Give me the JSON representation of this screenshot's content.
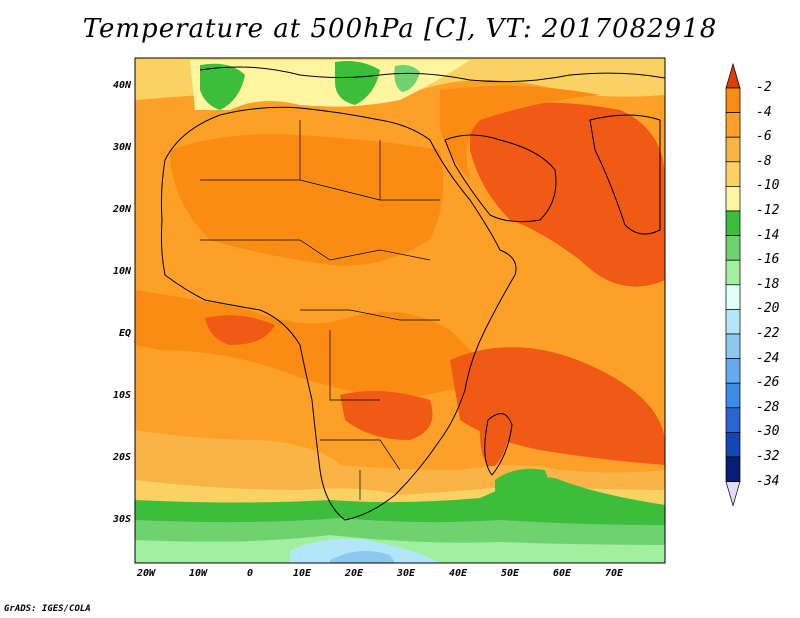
{
  "title": "Temperature at 500hPa [C], VT: 2017082918",
  "credit": "GrADS: IGES/COLA",
  "lat_ticks": [
    "40N",
    "30N",
    "20N",
    "10N",
    "EQ",
    "10S",
    "20S",
    "30S"
  ],
  "lon_ticks": [
    "20W",
    "10W",
    "0",
    "10E",
    "20E",
    "30E",
    "40E",
    "50E",
    "60E",
    "70E"
  ],
  "colorbar": {
    "labels": [
      "-2",
      "-4",
      "-6",
      "-8",
      "-10",
      "-12",
      "-14",
      "-16",
      "-18",
      "-20",
      "-22",
      "-24",
      "-26",
      "-28",
      "-30",
      "-32",
      "-34"
    ],
    "colors": [
      "#f03c14",
      "#fa8c14",
      "#fca028",
      "#fab446",
      "#fad264",
      "#fff5a0",
      "#3cbe3c",
      "#6ed26e",
      "#a0f0a0",
      "#e0fff8",
      "#b4e6fa",
      "#8cc8f0",
      "#64aaf0",
      "#3c8ce6",
      "#2864d2",
      "#1446b4",
      "#0a1e78"
    ],
    "top_arrow_color": "#e03c0a",
    "bottom_arrow_color": "#e0dcfa"
  },
  "fill_colors": {
    "hot": "#f05a14",
    "warm": "#fa8c14",
    "mid": "#fca028",
    "mild": "#fab446",
    "cool": "#fad264",
    "green_dark": "#3cbe3c",
    "green_mid": "#6ed26e",
    "green_light": "#a0f0a0",
    "blue_light": "#b4e6fa",
    "blue_mid": "#8cc8f0"
  }
}
